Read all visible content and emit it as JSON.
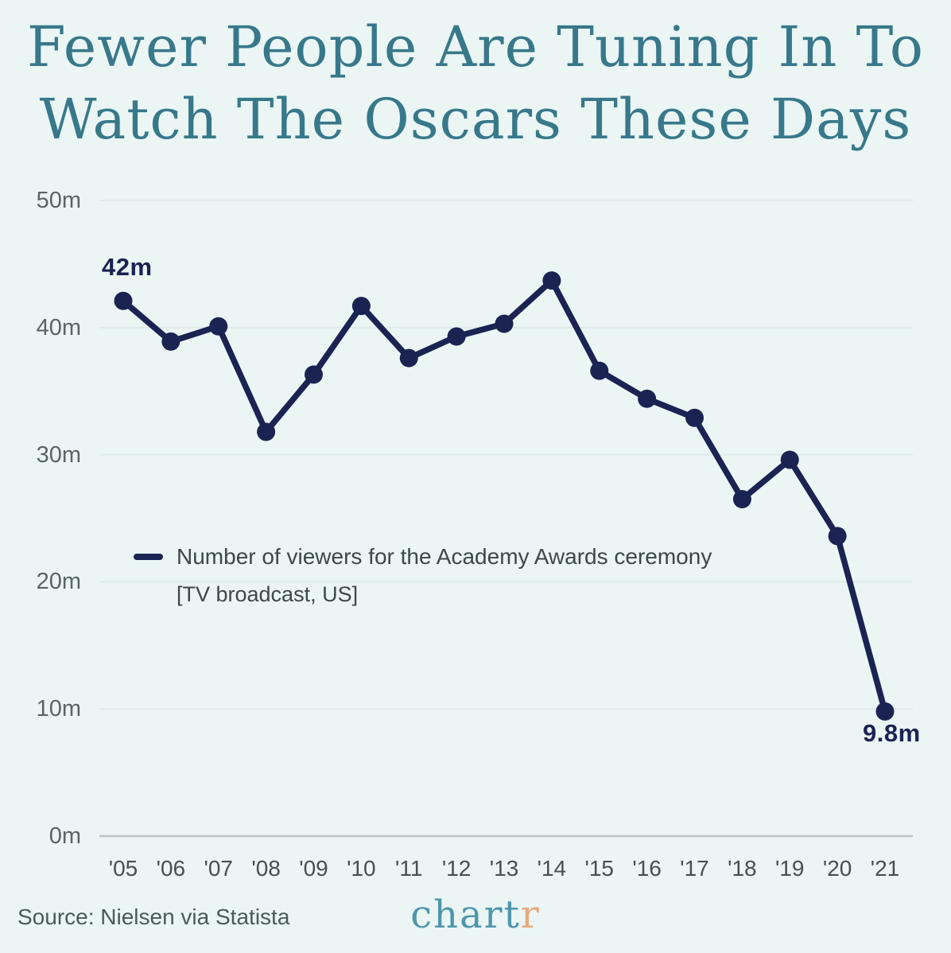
{
  "title": {
    "line1": "Fewer People Are Tuning In To",
    "line2": "Watch The Oscars These Days"
  },
  "legend": {
    "label": "Number of viewers for the Academy Awards ceremony",
    "sublabel": "[TV broadcast, US]"
  },
  "annotations": {
    "first_point_label": "42m",
    "last_point_label": "9.8m"
  },
  "footer": {
    "source": "Source: Nielsen via Statista",
    "logo_part1": "chart",
    "logo_part2": "r"
  },
  "colors": {
    "background": "#eaf5f4",
    "title": "#37788a",
    "line": "#1a2352",
    "gridline": "#dfeae9",
    "axis_line": "#b9c4c3",
    "ytick_label": "#5a6464",
    "xtick_label": "#47504f",
    "legend_text": "#3d4747",
    "source_text": "#4d5858",
    "logo_teal": "#4e96ac",
    "logo_orange": "#e9a87e"
  },
  "chart_data": {
    "type": "line",
    "title": "Fewer People Are Tuning In To Watch The Oscars These Days",
    "categories": [
      "'05",
      "'06",
      "'07",
      "'08",
      "'09",
      "'10",
      "'11",
      "'12",
      "'13",
      "'14",
      "'15",
      "'16",
      "'17",
      "'18",
      "'19",
      "'20",
      "'21"
    ],
    "values": [
      42.1,
      38.9,
      40.1,
      31.8,
      36.3,
      41.7,
      37.6,
      39.3,
      40.3,
      43.7,
      36.6,
      34.4,
      32.9,
      26.5,
      29.6,
      23.6,
      9.8
    ],
    "series_label": "Number of viewers for the Academy Awards ceremony [TV broadcast, US]",
    "unit": "million viewers",
    "xlabel": "",
    "ylabel": "",
    "yticks": [
      0,
      10,
      20,
      30,
      40,
      50
    ],
    "ytick_suffix": "m",
    "ylim": [
      0,
      50
    ],
    "grid": "horizontal",
    "legend_position": "center-left",
    "annotated_points": {
      "2005": "42m",
      "2021": "9.8m"
    }
  }
}
